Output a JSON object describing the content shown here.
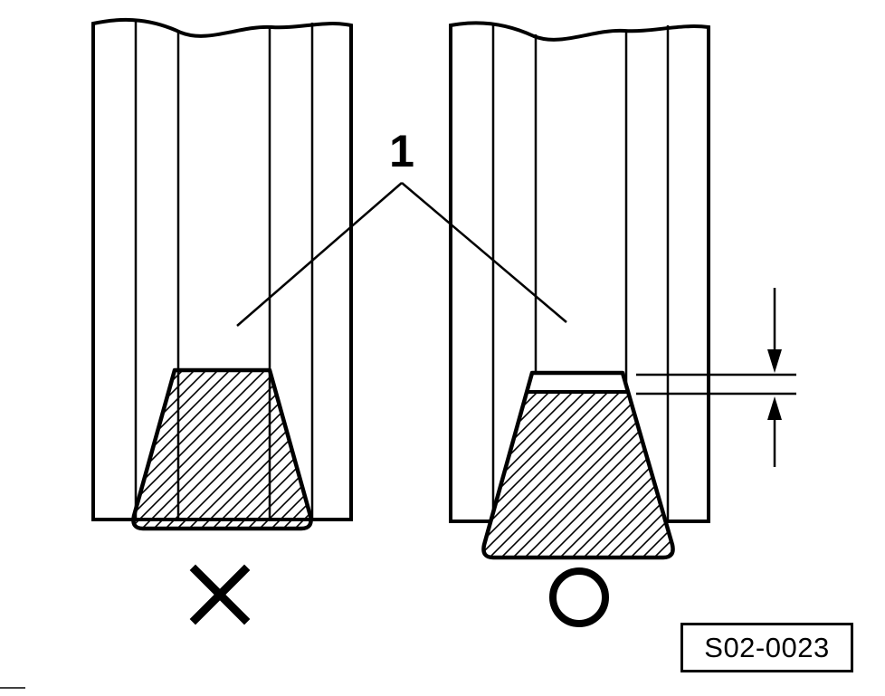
{
  "callout": {
    "label": "1"
  },
  "verdicts": {
    "left": {
      "icon": "cross-mark-icon",
      "meaning": "incorrect"
    },
    "right": {
      "icon": "circle-mark-icon",
      "meaning": "correct"
    }
  },
  "figure": {
    "id": "S02-0023"
  },
  "colors": {
    "ink": "#000000",
    "paper": "#ffffff"
  }
}
